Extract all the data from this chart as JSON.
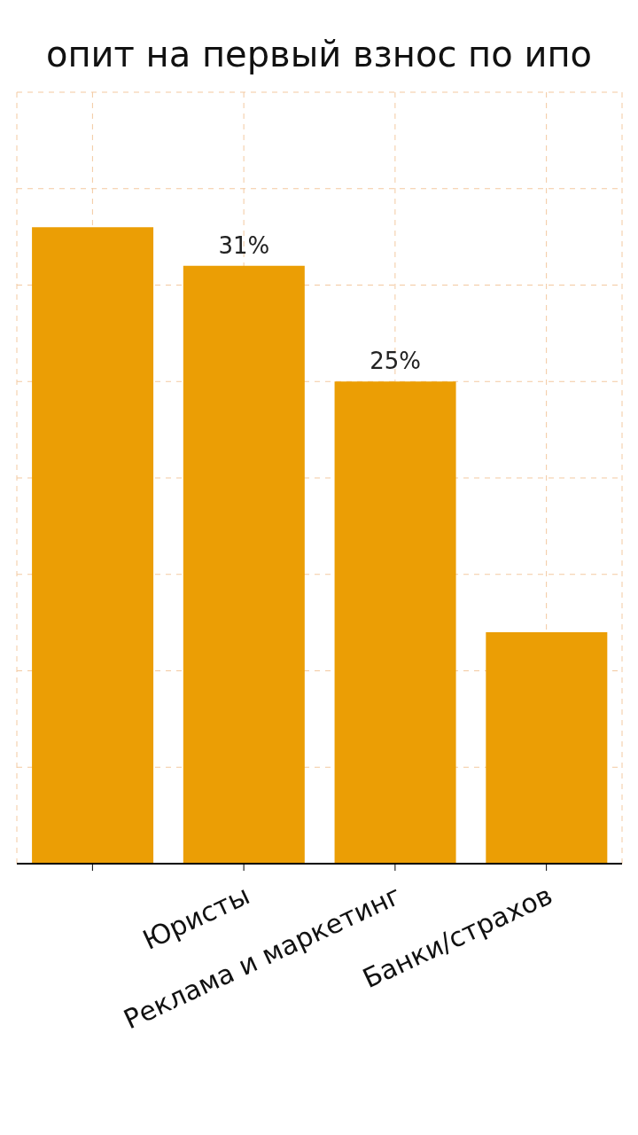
{
  "chart_data": {
    "type": "bar",
    "title": "опит на первый взнос по ипо",
    "categories": [
      null,
      "Юристы",
      "Реклама и маркетинг",
      "Банки/страхов"
    ],
    "values": [
      33,
      31,
      25,
      12
    ],
    "value_labels": [
      null,
      "31%",
      "25%",
      null
    ],
    "color": "#eb9e05",
    "ylim": [
      0,
      40
    ],
    "grid": true,
    "tick_labels": "x"
  }
}
